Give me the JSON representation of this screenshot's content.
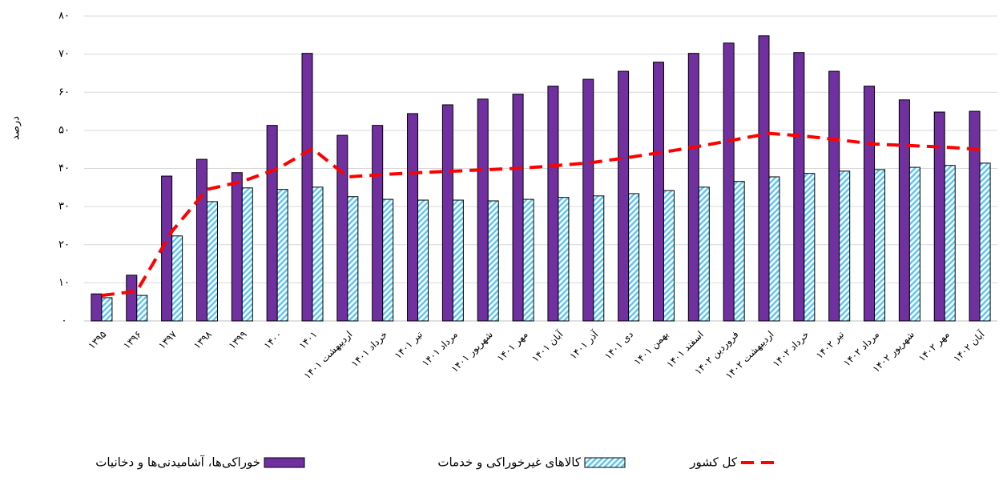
{
  "chart_data": {
    "type": "bar_line",
    "y_label": "درصد",
    "categories": [
      "۱۳۹۵",
      "۱۳۹۶",
      "۱۳۹۷",
      "۱۳۹۸",
      "۱۳۹۹",
      "۱۴۰۰",
      "۱۴۰۱",
      "اردیبهشت ۱۴۰۱",
      "خرداد ۱۴۰۱",
      "تیر ۱۴۰۱",
      "مرداد ۱۴۰۱",
      "شهریور ۱۴۰۱",
      "مهر ۱۴۰۱",
      "آبان ۱۴۰۱",
      "آذر ۱۴۰۱",
      "دی ۱۴۰۱",
      "بهمن ۱۴۰۱",
      "اسفند ۱۴۰۱",
      "فروردین ۱۴۰۲",
      "اردیبهشت ۱۴۰۲",
      "خرداد ۱۴۰۲",
      "تیر ۱۴۰۲",
      "مرداد ۱۴۰۲",
      "شهریور ۱۴۰۲",
      "مهر ۱۴۰۲",
      "آبان ۱۴۰۲"
    ],
    "series": [
      {
        "name": "خوراکی‌ها، آشامیدنی‌ها و دخانیات",
        "color": "#7030a0",
        "kind": "bar",
        "values": [
          7.1,
          12.0,
          38.0,
          42.4,
          38.9,
          51.3,
          70.2,
          48.7,
          51.3,
          54.4,
          56.7,
          58.2,
          59.5,
          61.6,
          63.4,
          65.5,
          67.9,
          70.2,
          72.9,
          74.8,
          70.4,
          65.5,
          61.6,
          58.0,
          54.8,
          55.0
        ]
      },
      {
        "name": "کالاهای غیرخوراکی و خدمات",
        "color": "#5bc8f0",
        "kind": "bar",
        "values": [
          6.1,
          6.7,
          22.3,
          31.3,
          34.9,
          34.5,
          35.1,
          32.6,
          31.9,
          31.7,
          31.7,
          31.5,
          31.9,
          32.4,
          32.8,
          33.4,
          34.2,
          35.1,
          36.6,
          37.8,
          38.7,
          39.3,
          39.7,
          40.3,
          40.8,
          41.4
        ]
      },
      {
        "name": "کل کشور",
        "color": "#ff0000",
        "kind": "line",
        "values": [
          6.7,
          7.8,
          23.5,
          34.5,
          36.6,
          39.9,
          45.2,
          37.8,
          38.4,
          38.9,
          39.3,
          39.7,
          40.1,
          40.8,
          41.6,
          42.9,
          44.3,
          45.8,
          47.5,
          49.2,
          48.5,
          47.5,
          46.4,
          46.0,
          45.6,
          45.0
        ]
      }
    ],
    "ylim": [
      0,
      80
    ],
    "yticks": [
      {
        "value": 0,
        "label": "۰"
      },
      {
        "value": 10,
        "label": "۱۰"
      },
      {
        "value": 20,
        "label": "۲۰"
      },
      {
        "value": 30,
        "label": "۳۰"
      },
      {
        "value": 40,
        "label": "۴۰"
      },
      {
        "value": 50,
        "label": "۵۰"
      },
      {
        "value": 60,
        "label": "۶۰"
      },
      {
        "value": 70,
        "label": "۷۰"
      },
      {
        "value": 80,
        "label": "۸۰"
      }
    ],
    "grid": true,
    "legend": "bottom"
  }
}
